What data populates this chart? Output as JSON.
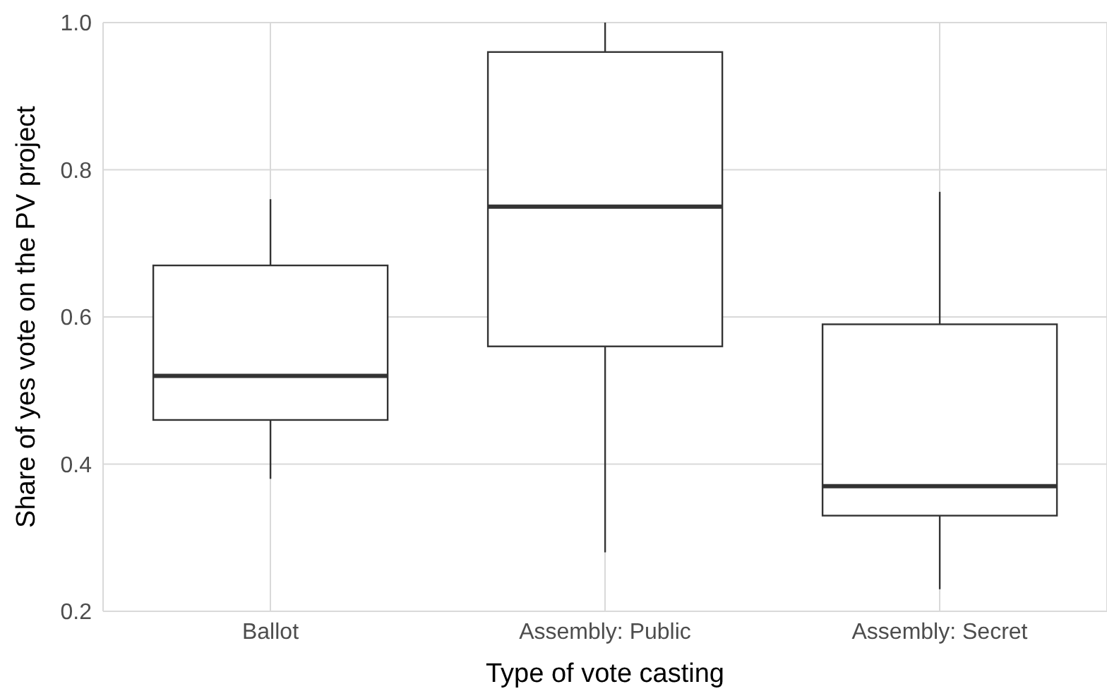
{
  "chart_data": {
    "type": "box",
    "xlabel": "Type of vote casting",
    "ylabel": "Share of yes vote on the PV project",
    "categories": [
      "Ballot",
      "Assembly: Public",
      "Assembly: Secret"
    ],
    "boxes": [
      {
        "low": 0.38,
        "q1": 0.46,
        "median": 0.52,
        "q3": 0.67,
        "high": 0.76
      },
      {
        "low": 0.28,
        "q1": 0.56,
        "median": 0.75,
        "q3": 0.96,
        "high": 1.0
      },
      {
        "low": 0.23,
        "q1": 0.33,
        "median": 0.37,
        "q3": 0.59,
        "high": 0.77
      }
    ],
    "color": "#333333",
    "ylim": [
      0.2,
      1.0
    ],
    "yticks": [
      0.2,
      0.4,
      0.6,
      0.8,
      {
        "value": 1.0,
        "label": "1.0"
      }
    ],
    "grid": true
  }
}
